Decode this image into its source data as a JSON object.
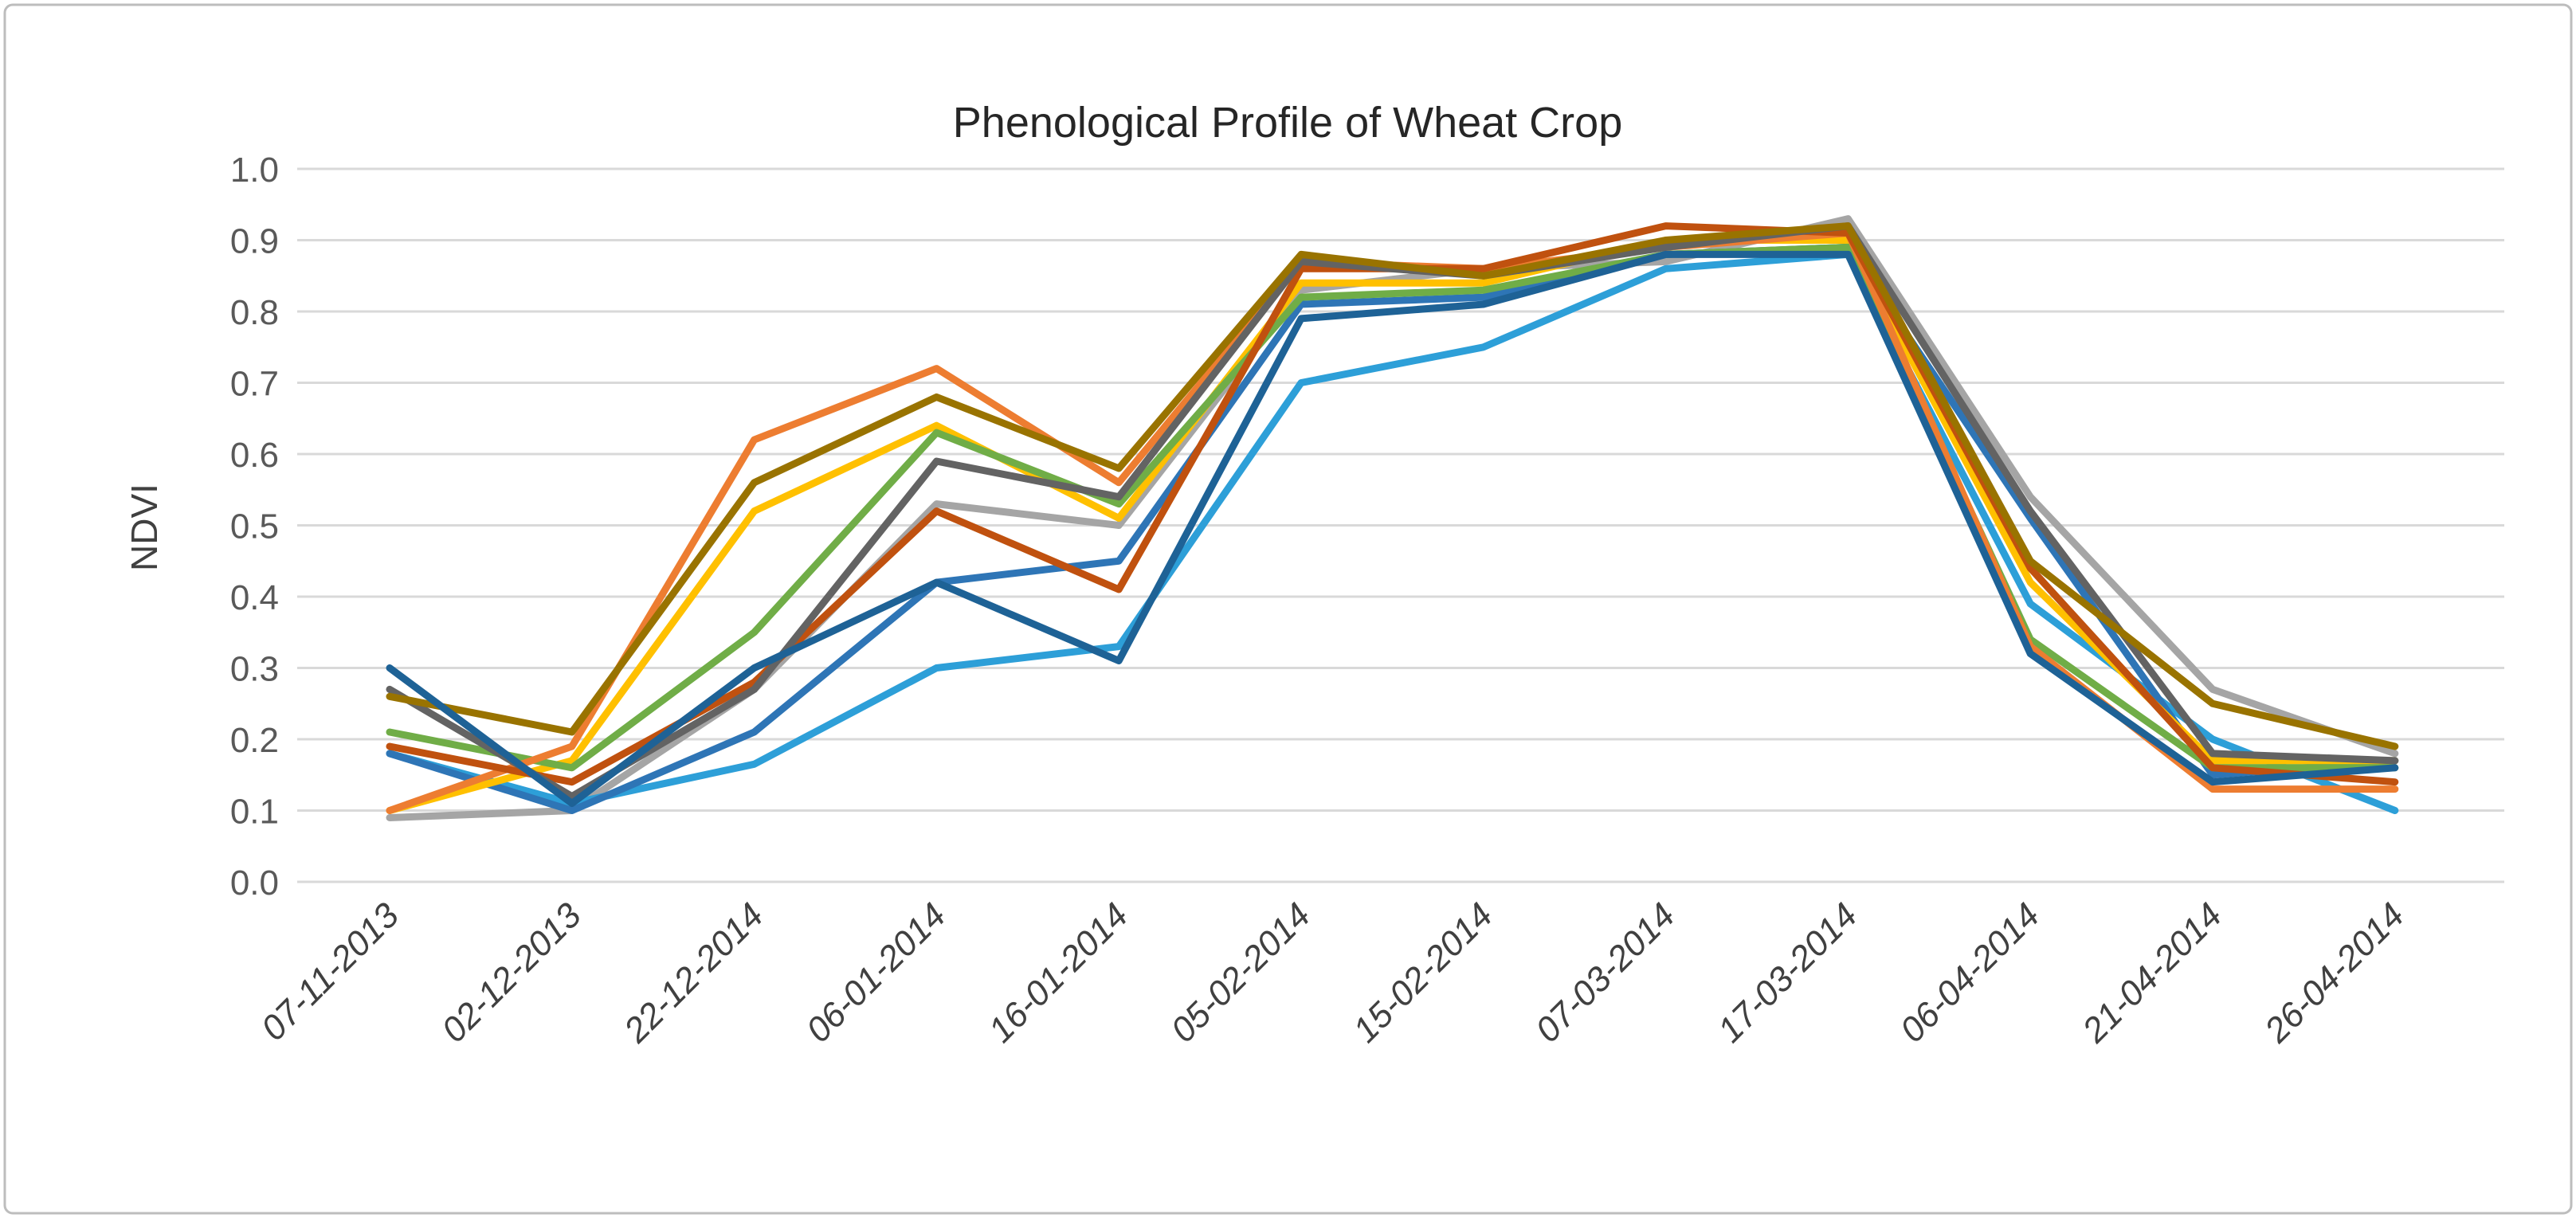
{
  "title": "Phenological Profile of Wheat Crop",
  "y_axis": {
    "label": "NDVI",
    "ticks": [
      "0.0",
      "0.1",
      "0.2",
      "0.3",
      "0.4",
      "0.5",
      "0.6",
      "0.7",
      "0.8",
      "0.9",
      "1.0"
    ],
    "min": 0.0,
    "max": 1.0
  },
  "x_axis": {
    "labels": [
      "07-11-2013",
      "02-12-2013",
      "22-12-2014",
      "06-01-2014",
      "16-01-2014",
      "05-02-2014",
      "15-02-2014",
      "07-03-2014",
      "17-03-2014",
      "06-04-2014",
      "21-04-2014",
      "26-04-2014"
    ]
  },
  "style": {
    "border_color": "#bdbdbd",
    "gridline_color": "#d9d9d9",
    "background": "#ffffff",
    "series_stroke_width": 9,
    "gridline_stroke_width": 3
  },
  "chart_data": {
    "type": "line",
    "title": "Phenological Profile of Wheat Crop",
    "xlabel": "",
    "ylabel": "NDVI",
    "ylim": [
      0.0,
      1.0
    ],
    "ytick_step": 0.1,
    "grid": "horizontal",
    "legend_position": "none",
    "categories": [
      "07-11-2013",
      "02-12-2013",
      "22-12-2014",
      "06-01-2014",
      "16-01-2014",
      "05-02-2014",
      "15-02-2014",
      "07-03-2014",
      "17-03-2014",
      "06-04-2014",
      "21-04-2014",
      "26-04-2014"
    ],
    "series": [
      {
        "name": "series-light-gray",
        "color": "#a5a5a5",
        "values": [
          0.09,
          0.1,
          0.27,
          0.53,
          0.5,
          0.83,
          0.86,
          0.87,
          0.93,
          0.54,
          0.27,
          0.18
        ]
      },
      {
        "name": "series-cyan",
        "color": "#2d9fd8",
        "values": [
          0.18,
          0.11,
          0.165,
          0.3,
          0.33,
          0.7,
          0.75,
          0.86,
          0.88,
          0.39,
          0.2,
          0.1
        ]
      },
      {
        "name": "series-blue",
        "color": "#2e75b6",
        "values": [
          0.18,
          0.1,
          0.21,
          0.42,
          0.45,
          0.81,
          0.82,
          0.88,
          0.89,
          0.51,
          0.15,
          0.17
        ]
      },
      {
        "name": "series-gold",
        "color": "#ffc000",
        "values": [
          0.1,
          0.17,
          0.52,
          0.64,
          0.51,
          0.84,
          0.84,
          0.9,
          0.9,
          0.42,
          0.17,
          0.17
        ]
      },
      {
        "name": "series-green",
        "color": "#70ad47",
        "values": [
          0.21,
          0.16,
          0.35,
          0.63,
          0.53,
          0.82,
          0.83,
          0.88,
          0.89,
          0.34,
          0.16,
          0.16
        ]
      },
      {
        "name": "series-orange",
        "color": "#ed7d31",
        "values": [
          0.1,
          0.19,
          0.62,
          0.72,
          0.56,
          0.87,
          0.86,
          0.89,
          0.91,
          0.33,
          0.13,
          0.13
        ]
      },
      {
        "name": "series-rust",
        "color": "#c0510f",
        "values": [
          0.19,
          0.14,
          0.28,
          0.52,
          0.41,
          0.86,
          0.86,
          0.92,
          0.91,
          0.44,
          0.16,
          0.14
        ]
      },
      {
        "name": "series-dark-gray",
        "color": "#636363",
        "values": [
          0.27,
          0.12,
          0.27,
          0.59,
          0.54,
          0.87,
          0.85,
          0.89,
          0.92,
          0.52,
          0.18,
          0.17
        ]
      },
      {
        "name": "series-olive",
        "color": "#997300",
        "values": [
          0.26,
          0.21,
          0.56,
          0.68,
          0.58,
          0.88,
          0.85,
          0.9,
          0.92,
          0.45,
          0.25,
          0.19
        ]
      },
      {
        "name": "series-navy",
        "color": "#1e6296",
        "values": [
          0.3,
          0.11,
          0.3,
          0.42,
          0.31,
          0.79,
          0.81,
          0.88,
          0.88,
          0.32,
          0.14,
          0.16
        ]
      }
    ]
  }
}
